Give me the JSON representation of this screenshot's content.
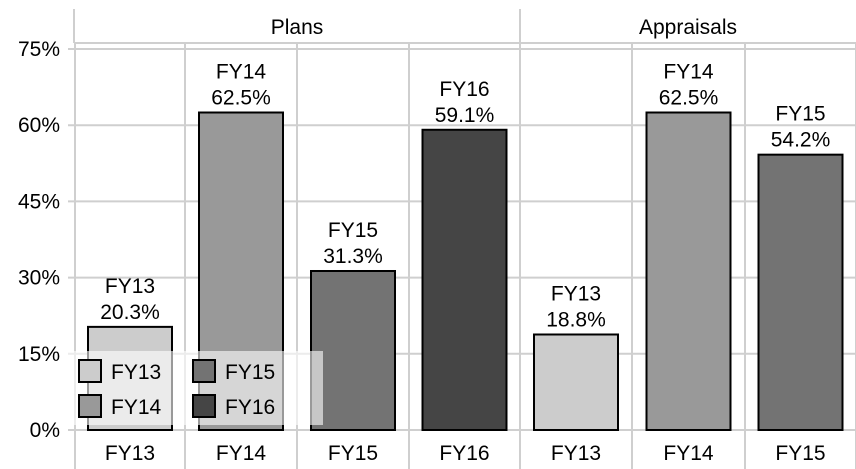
{
  "chart_data": {
    "type": "bar",
    "ylim": [
      0,
      75
    ],
    "yticks": [
      "0%",
      "15%",
      "30%",
      "45%",
      "60%",
      "75%"
    ],
    "ytick_values": [
      0,
      15,
      30,
      45,
      60,
      75
    ],
    "grid": true,
    "legend_position": "bottom-left",
    "legend": [
      {
        "label": "FY13",
        "color": "#cccccc"
      },
      {
        "label": "FY14",
        "color": "#999999"
      },
      {
        "label": "FY15",
        "color": "#737373"
      },
      {
        "label": "FY16",
        "color": "#454545"
      }
    ],
    "panels": [
      {
        "title": "Plans",
        "bars": [
          {
            "category": "FY13",
            "value": 20.3,
            "label_top": "FY13",
            "label_value": "20.3%",
            "color": "#cccccc"
          },
          {
            "category": "FY14",
            "value": 62.5,
            "label_top": "FY14",
            "label_value": "62.5%",
            "color": "#999999"
          },
          {
            "category": "FY15",
            "value": 31.3,
            "label_top": "FY15",
            "label_value": "31.3%",
            "color": "#737373"
          },
          {
            "category": "FY16",
            "value": 59.1,
            "label_top": "FY16",
            "label_value": "59.1%",
            "color": "#454545"
          }
        ]
      },
      {
        "title": "Appraisals",
        "bars": [
          {
            "category": "FY13",
            "value": 18.8,
            "label_top": "FY13",
            "label_value": "18.8%",
            "color": "#cccccc"
          },
          {
            "category": "FY14",
            "value": 62.5,
            "label_top": "FY14",
            "label_value": "62.5%",
            "color": "#999999"
          },
          {
            "category": "FY15",
            "value": 54.2,
            "label_top": "FY15",
            "label_value": "54.2%",
            "color": "#737373"
          }
        ]
      }
    ]
  }
}
